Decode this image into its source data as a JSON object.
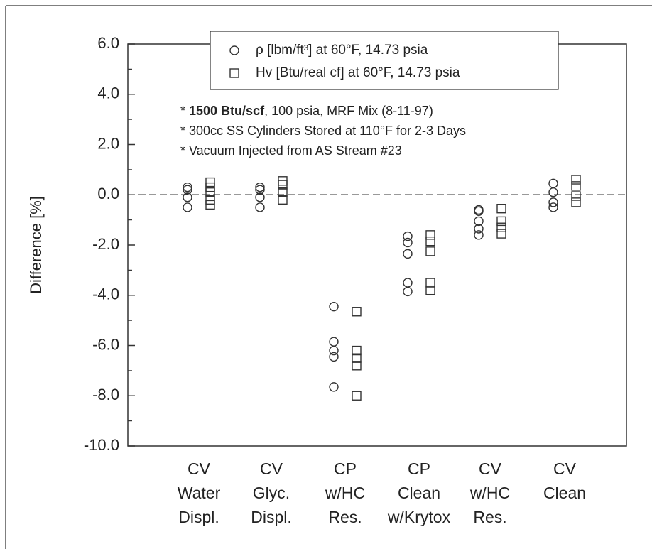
{
  "chart_data": {
    "type": "scatter",
    "y_label": "Difference [%]",
    "categories": [
      [
        "CV",
        "Water",
        "Displ."
      ],
      [
        "CV",
        "Glyc.",
        "Displ."
      ],
      [
        "CP",
        "w/HC",
        "Res."
      ],
      [
        "CP",
        "Clean",
        "w/Krytox"
      ],
      [
        "CV",
        "w/HC",
        "Res."
      ],
      [
        "CV",
        "Clean"
      ]
    ],
    "series": [
      {
        "name": "ρ [lbm/ft³] at 60°F, 14.73 psia",
        "marker": "circle",
        "color": "#333333",
        "values": [
          [
            0.3,
            0.2,
            -0.1,
            -0.5
          ],
          [
            0.3,
            0.2,
            -0.1,
            -0.5
          ],
          [
            -4.45,
            -5.85,
            -6.2,
            -6.45,
            -7.65
          ],
          [
            -1.65,
            -1.9,
            -2.35,
            -3.5,
            -3.85
          ],
          [
            -0.6,
            -0.65,
            -1.05,
            -1.35,
            -1.6
          ],
          [
            0.45,
            0.1,
            -0.3,
            -0.5
          ]
        ]
      },
      {
        "name": "Hv [Btu/real cf] at 60°F, 14.73 psia",
        "marker": "square",
        "color": "#333333",
        "values": [
          [
            0.5,
            0.3,
            0.1,
            -0.2,
            -0.4
          ],
          [
            0.55,
            0.4,
            0.1,
            -0.2
          ],
          [
            -4.65,
            -6.2,
            -6.5,
            -6.8,
            -8.0
          ],
          [
            -1.6,
            -1.85,
            -2.25,
            -3.5,
            -3.8
          ],
          [
            -0.55,
            -1.05,
            -1.3,
            -1.55
          ],
          [
            0.6,
            0.35,
            -0.05,
            -0.3
          ]
        ]
      }
    ],
    "annotations": [
      [
        "* ",
        "1500 Btu/scf",
        ", 100 psia, MRF Mix (8-11-97)"
      ],
      [
        "* 300cc SS Cylinders Stored at 110°F for 2-3 Days"
      ],
      [
        "* Vacuum Injected from AS Stream #23"
      ]
    ],
    "reference_line": 0,
    "ylim": [
      -10,
      6
    ],
    "yticks": [
      {
        "value": -10,
        "label": "-10.0"
      },
      {
        "value": -8,
        "label": "-8.0"
      },
      {
        "value": -6,
        "label": "-6.0"
      },
      {
        "value": -4,
        "label": "-4.0"
      },
      {
        "value": -2,
        "label": "-2.0"
      },
      {
        "value": 0,
        "label": "0.0"
      },
      {
        "value": 2,
        "label": "2.0"
      },
      {
        "value": 4,
        "label": "4.0"
      },
      {
        "value": 6,
        "label": "6.0"
      }
    ],
    "legend": "top"
  }
}
